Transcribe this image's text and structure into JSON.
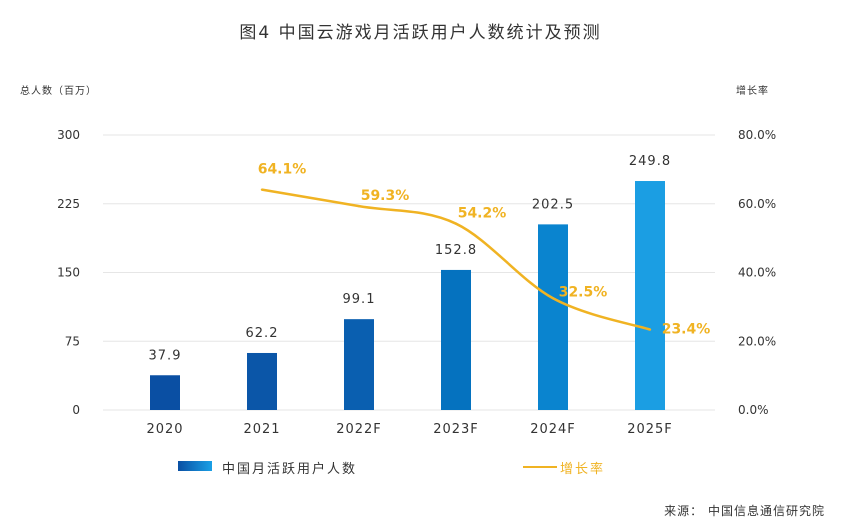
{
  "title": "图4   中国云游戏月活跃用户人数统计及预测",
  "left_axis_unit": "总人数（百万）",
  "right_axis_unit": "增长率",
  "source": "来源：  中国信息通信研究院",
  "legend": {
    "bars": "中国月活跃用户人数",
    "line": "增长率"
  },
  "colors": {
    "bar_dark": "#0a4fa3",
    "bar_light": "#1aa0e6",
    "line": "#f0b323",
    "grid": "#e6e6e6"
  },
  "chart_data": {
    "type": "bar",
    "title": "图4   中国云游戏月活跃用户人数统计及预测",
    "categories": [
      "2020",
      "2021",
      "2022F",
      "2023F",
      "2024F",
      "2025F"
    ],
    "series": [
      {
        "name": "中国月活跃用户人数",
        "type": "bar",
        "axis": "left",
        "values": [
          37.9,
          62.2,
          99.1,
          152.8,
          202.5,
          249.8
        ],
        "labels": [
          "37.9",
          "62.2",
          "99.1",
          "152.8",
          "202.5",
          "249.8"
        ]
      },
      {
        "name": "增长率",
        "type": "line",
        "axis": "right",
        "values": [
          null,
          64.1,
          59.3,
          54.2,
          32.5,
          23.4
        ],
        "labels": [
          "",
          "64.1%",
          "59.3%",
          "54.2%",
          "32.5%",
          "23.4%"
        ]
      }
    ],
    "left_axis": {
      "ylim": [
        0,
        300
      ],
      "ticks": [
        0,
        75,
        150,
        225,
        300
      ],
      "tick_labels": [
        "0",
        "75",
        "150",
        "225",
        "300"
      ]
    },
    "right_axis": {
      "ylim": [
        0,
        80
      ],
      "ticks": [
        0,
        20,
        40,
        60,
        80
      ],
      "tick_labels": [
        "0.0%",
        "20.0%",
        "40.0%",
        "60.0%",
        "80.0%"
      ]
    },
    "grid": true,
    "legend_position": "bottom"
  }
}
